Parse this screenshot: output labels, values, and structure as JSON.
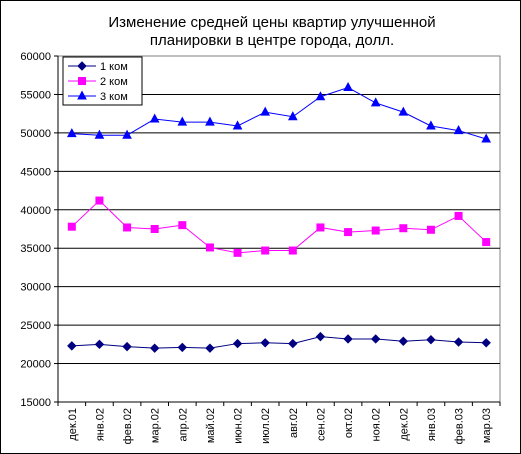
{
  "chart_data": {
    "type": "line",
    "title": "Изменение средней цены квартир улучшенной",
    "subtitle": "планировки в центре города, долл.",
    "xlabel": "",
    "ylabel": "",
    "ylim": [
      15000,
      60000
    ],
    "y_ticks": [
      "15000",
      "20000",
      "25000",
      "30000",
      "35000",
      "40000",
      "45000",
      "50000",
      "55000",
      "60000"
    ],
    "grid": true,
    "legend_position": "top-left",
    "categories": [
      "дек.01",
      "янв.02",
      "фев.02",
      "мар.02",
      "апр.02",
      "май.02",
      "июн.02",
      "июл.02",
      "авг.02",
      "сен.02",
      "окт.02",
      "ноя.02",
      "дек.02",
      "янв.03",
      "фев.03",
      "мар.03"
    ],
    "series": [
      {
        "name": "1 ком",
        "color": "#000080",
        "marker": "diamond",
        "values": [
          22300,
          22500,
          22200,
          22000,
          22100,
          22000,
          22600,
          22700,
          22600,
          23500,
          23200,
          23200,
          22900,
          23100,
          22800,
          22700
        ]
      },
      {
        "name": "2 ком",
        "color": "#FF00FF",
        "marker": "square",
        "values": [
          37800,
          41200,
          37700,
          37500,
          38000,
          35100,
          34400,
          34700,
          34700,
          37700,
          37100,
          37300,
          37600,
          37400,
          39200,
          35800
        ]
      },
      {
        "name": "3 ком",
        "color": "#0000FF",
        "marker": "triangle",
        "values": [
          49900,
          49700,
          49700,
          51800,
          51400,
          51400,
          50900,
          52700,
          52100,
          54700,
          55900,
          53900,
          52700,
          50900,
          50300,
          49200
        ]
      }
    ]
  }
}
